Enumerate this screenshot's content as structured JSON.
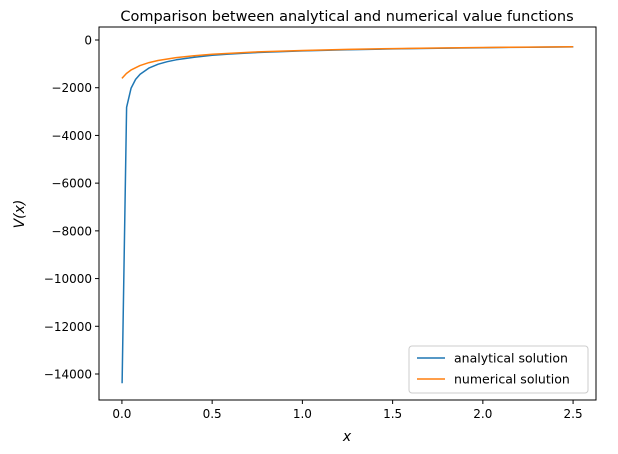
{
  "chart_data": {
    "type": "line",
    "title": "Comparison between analytical and numerical value functions",
    "xlabel": "x",
    "ylabel": "V(x)",
    "xlim": [
      -0.127,
      2.627
    ],
    "ylim": [
      -15090,
      545
    ],
    "xticks": [
      0.0,
      0.5,
      1.0,
      1.5,
      2.0,
      2.5
    ],
    "xtick_labels": [
      "0.0",
      "0.5",
      "1.0",
      "1.5",
      "2.0",
      "2.5"
    ],
    "yticks": [
      0,
      -2000,
      -4000,
      -6000,
      -8000,
      -10000,
      -12000,
      -14000
    ],
    "ytick_labels": [
      "0",
      "−2000",
      "−4000",
      "−6000",
      "−8000",
      "−10000",
      "−12000",
      "−14000"
    ],
    "grid": false,
    "legend_position": "lower-right",
    "series": [
      {
        "name": "analytical solution",
        "color": "#1f77b4",
        "x": [
          0.001,
          0.026,
          0.051,
          0.076,
          0.101,
          0.151,
          0.201,
          0.251,
          0.301,
          0.401,
          0.501,
          0.601,
          0.751,
          1.001,
          1.251,
          1.501,
          1.751,
          2.001,
          2.251,
          2.501
        ],
        "y": [
          -14388,
          -2822,
          -2015,
          -1650,
          -1432,
          -1171,
          -1015,
          -908,
          -829,
          -719,
          -643,
          -587,
          -525,
          -455,
          -407,
          -371,
          -344,
          -322,
          -303,
          -288
        ]
      },
      {
        "name": "numerical solution",
        "color": "#ff7f0e",
        "x": [
          0,
          0.025,
          0.05,
          0.1,
          0.15,
          0.2,
          0.3,
          0.4,
          0.5,
          0.75,
          1.0,
          1.25,
          1.5,
          1.75,
          2.0,
          2.25,
          2.5
        ],
        "y": [
          -1609,
          -1404,
          -1262,
          -1072,
          -949,
          -860,
          -738,
          -657,
          -597,
          -499,
          -438,
          -395,
          -362,
          -336,
          -315,
          -298,
          -283
        ]
      }
    ]
  }
}
